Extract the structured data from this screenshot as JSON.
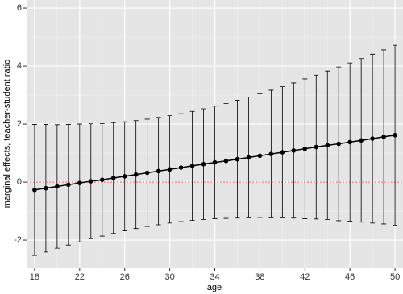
{
  "chart_data": {
    "type": "errorbar",
    "x_label": "age",
    "y_label": "marginal effects, teacher-student ratio",
    "x": [
      18,
      19,
      20,
      21,
      22,
      23,
      24,
      25,
      26,
      27,
      28,
      29,
      30,
      31,
      32,
      33,
      34,
      35,
      36,
      37,
      38,
      39,
      40,
      41,
      42,
      43,
      44,
      45,
      46,
      47,
      48,
      49,
      50
    ],
    "series": [
      {
        "color": "#000000",
        "values": [
          -0.27,
          -0.21,
          -0.15,
          -0.09,
          -0.03,
          0.03,
          0.08,
          0.14,
          0.2,
          0.26,
          0.32,
          0.38,
          0.44,
          0.5,
          0.56,
          0.62,
          0.68,
          0.73,
          0.79,
          0.85,
          0.91,
          0.97,
          1.03,
          1.09,
          1.15,
          1.21,
          1.27,
          1.32,
          1.38,
          1.44,
          1.5,
          1.56,
          1.62
        ],
        "errors": [
          2.26,
          2.2,
          2.13,
          2.08,
          2.03,
          1.98,
          1.94,
          1.91,
          1.88,
          1.86,
          1.85,
          1.85,
          1.85,
          1.86,
          1.88,
          1.91,
          1.94,
          1.98,
          2.03,
          2.08,
          2.13,
          2.2,
          2.26,
          2.33,
          2.41,
          2.48,
          2.56,
          2.65,
          2.73,
          2.82,
          2.91,
          3.0,
          3.1
        ]
      }
    ],
    "reference_line": {
      "value": 0,
      "color": "#ff0000"
    },
    "xlim": [
      17.29,
      50.71
    ],
    "ylim": [
      -2.97,
      6.28
    ],
    "xticks": [
      18,
      22,
      26,
      30,
      34,
      38,
      42,
      46,
      50
    ],
    "yticks": [
      -2,
      0,
      2,
      4,
      6
    ],
    "grid": true,
    "background": "#e5e5e5"
  }
}
